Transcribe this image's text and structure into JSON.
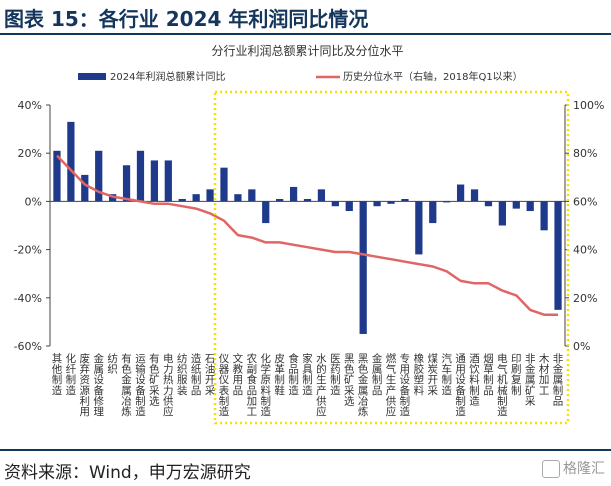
{
  "header": {
    "title": "图表 15：各行业 2024 年利润同比情况"
  },
  "footer": {
    "source": "资料来源：Wind，申万宏源研究",
    "watermark": "格隆汇"
  },
  "chart_data": {
    "type": "bar",
    "title": "分行业利润总额累计同比及分位水平",
    "legend_position": "top",
    "y_left": {
      "ylim": [
        -60,
        40
      ],
      "ticks": [
        "40%",
        "20%",
        "0%",
        "-20%",
        "-40%",
        "-60%"
      ]
    },
    "y_right": {
      "ylim": [
        0,
        100
      ],
      "ticks": [
        "100%",
        "80%",
        "60%",
        "40%",
        "20%",
        "0%"
      ]
    },
    "categories": [
      "其他制造",
      "化纤制造",
      "废弃资源利用",
      "金属设备修理",
      "纺织",
      "有色金属冶炼",
      "运输设备制造",
      "有色矿采选",
      "电力热力供应",
      "纺织服装",
      "造纸制品",
      "石油开采",
      "仪器仪表制造",
      "文教用品",
      "农副食品加工",
      "化学原料制造",
      "皮革制鞋",
      "食品制造",
      "家具制造",
      "水的生产供应",
      "医药制造",
      "黑色矿采选",
      "黑色金属冶炼",
      "金属制品",
      "燃气生产供应",
      "专用设备制造",
      "橡胶塑料",
      "煤炭开采",
      "汽车制造",
      "通用设备制造",
      "酒饮料制造",
      "烟草制品",
      "电气机械制造",
      "印刷复制",
      "非金属矿采",
      "木材加工",
      "非金属制品"
    ],
    "series": [
      {
        "name": "2024年利润总额累计同比",
        "axis": "left",
        "color": "#1f3a8a",
        "values": [
          21,
          33,
          11,
          21,
          3,
          15,
          21,
          17,
          17,
          1,
          3,
          5,
          14,
          3,
          5,
          -9,
          1,
          6,
          1,
          5,
          -2,
          -4,
          -55,
          -2,
          -1,
          1,
          -22,
          -9,
          0,
          7,
          5,
          -2,
          -10,
          -3,
          -4,
          -12,
          -45
        ]
      },
      {
        "name": "历史分位水平（右轴，2018年Q1以来）",
        "axis": "right",
        "color": "#e06666",
        "values": [
          79,
          73,
          67,
          64,
          62,
          61,
          60,
          59,
          59,
          58,
          57,
          55,
          52,
          46,
          45,
          43,
          43,
          42,
          41,
          40,
          39,
          39,
          38,
          37,
          36,
          35,
          34,
          33,
          31,
          27,
          26,
          26,
          23,
          21,
          15,
          13,
          13
        ]
      }
    ],
    "highlight": {
      "from": "仪器仪表制造",
      "to": "非金属制品",
      "style": "dotted",
      "color": "#f4e300"
    }
  }
}
